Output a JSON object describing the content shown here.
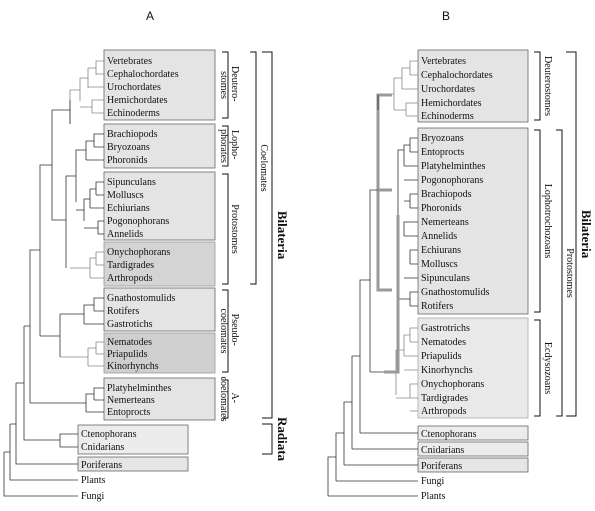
{
  "panels": {
    "a": {
      "title": "A",
      "boxes": [
        {
          "taxa": [
            "Vertebrates",
            "Cephalochordates",
            "Urochordates",
            "Hemichordates",
            "Echinoderms"
          ],
          "fill": "#e4e4e4"
        },
        {
          "taxa": [
            "Brachiopods",
            "Bryozoans",
            "Phoronids"
          ],
          "fill": "#e4e4e4"
        },
        {
          "taxa": [
            "Sipunculans",
            "Molluscs",
            "Echiurians",
            "Pogonophorans",
            "Annelids"
          ],
          "fill": "#e4e4e4"
        },
        {
          "taxa": [
            "Onychophorans",
            "Tardigrades",
            "Arthropods"
          ],
          "fill": "#d4d4d4"
        },
        {
          "taxa": [
            "Gnathostomulids",
            "Rotifers",
            "Gastrotichs"
          ],
          "fill": "#e4e4e4"
        },
        {
          "taxa": [
            "Nematodes",
            "Priapulids",
            "Kinorhynchs"
          ],
          "fill": "#cfcfcf"
        },
        {
          "taxa": [
            "Platyhelminthes",
            "Nemerteans",
            "Entoprocts"
          ],
          "fill": "#e4e4e4"
        },
        {
          "taxa": [
            "Ctenophorans",
            "Cnidarians"
          ],
          "fill": "#ececec"
        },
        {
          "taxa": [
            "Poriferans"
          ],
          "fill": "#e6e6e6"
        }
      ],
      "outside": [
        "Plants",
        "Fungi"
      ],
      "groups": {
        "deuterostomes": "Deutero-\nstomes",
        "lophophorates": "Lopho-\nphorates",
        "protostomes": "Protostomes",
        "coelomates": "Coelomates",
        "pseudocoelomates": "Pseudo-\ncoelomates",
        "acoelomates": "A-\ncoelomates",
        "bilateria": "Bilateria",
        "radiata": "Radiata"
      }
    },
    "b": {
      "title": "B",
      "boxes": [
        {
          "taxa": [
            "Vertebrates",
            "Cephalochordates",
            "Urochordates",
            "Hemichordates",
            "Echinoderms"
          ],
          "fill": "#e4e4e4"
        },
        {
          "taxa": [
            "Bryozoans",
            "Entoprocts",
            "Platyhelminthes",
            "Pogonophorans",
            "Brachiopods",
            "Phoronids",
            "Nemerteans",
            "Annelids",
            "Echiurans",
            "Molluscs",
            "Sipunculans",
            "Gnathostomulids",
            "Rotifers"
          ],
          "fill": "#e4e4e4"
        },
        {
          "taxa": [
            "Gastrotrichs",
            "Nematodes",
            "Priapulids",
            "Kinorhynchs",
            "Onychophorans",
            "Tardigrades",
            "Arthropods"
          ],
          "fill": "#e9e9e9"
        },
        {
          "taxa": [
            "Ctenophorans"
          ],
          "fill": "#ececec"
        },
        {
          "taxa": [
            "Cnidarians"
          ],
          "fill": "#ececec"
        },
        {
          "taxa": [
            "Poriferans"
          ],
          "fill": "#e6e6e6"
        }
      ],
      "outside": [
        "Fungi",
        "Plants"
      ],
      "groups": {
        "deuterostomes": "Deuterostomes",
        "lophotrochozoans": "Lophotrochozoans",
        "ecdysozoans": "Ecdysozoans",
        "protostomes": "Protostomes",
        "bilateria": "Bilateria"
      }
    }
  }
}
